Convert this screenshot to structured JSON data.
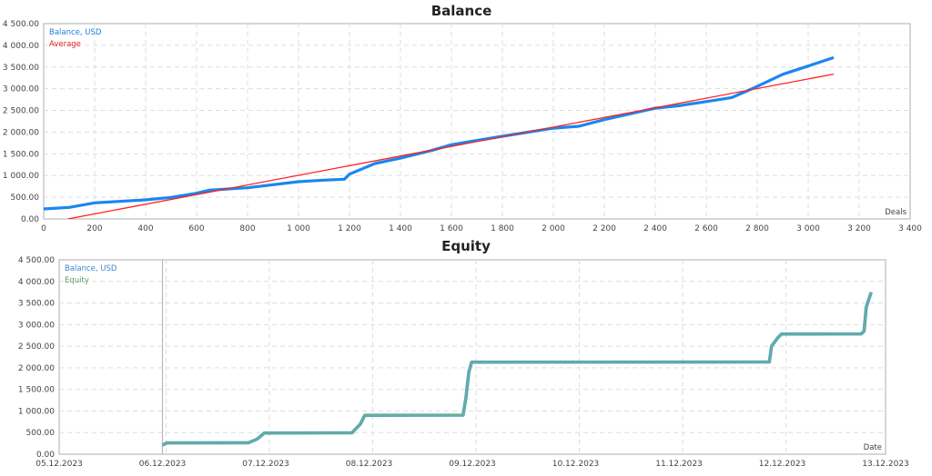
{
  "chart_data": [
    {
      "type": "line",
      "title": "Balance",
      "xlabel": "Deals",
      "ylabel": "",
      "xlim": [
        0,
        3400
      ],
      "ylim": [
        0,
        4500
      ],
      "grid": true,
      "legend_position": "top-left",
      "x_ticks": [
        "0",
        "200",
        "400",
        "600",
        "800",
        "1 000",
        "1 200",
        "1 400",
        "1 600",
        "1 800",
        "2 000",
        "2 200",
        "2 400",
        "2 600",
        "2 800",
        "3 000",
        "3 200",
        "3 400"
      ],
      "y_ticks": [
        "0.00",
        "500.00",
        "1 000.00",
        "1 500.00",
        "2 000.00",
        "2 500.00",
        "3 000.00",
        "3 500.00",
        "4 000.00",
        "4 500.00"
      ],
      "colors": {
        "balance": "#1a86f0",
        "average": "#ff2020"
      },
      "series": [
        {
          "name": "Balance, USD",
          "points": [
            [
              0,
              230
            ],
            [
              100,
              265
            ],
            [
              200,
              370
            ],
            [
              400,
              440
            ],
            [
              500,
              495
            ],
            [
              600,
              592
            ],
            [
              650,
              663
            ],
            [
              800,
              718
            ],
            [
              1000,
              858
            ],
            [
              1100,
              893
            ],
            [
              1180,
              914
            ],
            [
              1200,
              1032
            ],
            [
              1300,
              1276
            ],
            [
              1400,
              1400
            ],
            [
              1520,
              1575
            ],
            [
              1600,
              1709
            ],
            [
              1800,
              1904
            ],
            [
              2000,
              2090
            ],
            [
              2100,
              2134
            ],
            [
              2200,
              2287
            ],
            [
              2400,
              2552
            ],
            [
              2500,
              2615
            ],
            [
              2600,
              2705
            ],
            [
              2700,
              2797
            ],
            [
              2760,
              2950
            ],
            [
              2800,
              3054
            ],
            [
              2900,
              3333
            ],
            [
              3000,
              3522
            ],
            [
              3100,
              3717
            ]
          ]
        },
        {
          "name": "Average",
          "points": [
            [
              95,
              0
            ],
            [
              3100,
              3336
            ]
          ]
        }
      ]
    },
    {
      "type": "line",
      "title": "Equity",
      "xlabel": "Date",
      "ylabel": "",
      "xlim": [
        "2023-12-05",
        "2023-12-13"
      ],
      "ylim": [
        0,
        4500
      ],
      "grid": true,
      "legend_position": "top-left",
      "x_ticks": [
        "05.12.2023",
        "06.12.2023",
        "07.12.2023",
        "08.12.2023",
        "09.12.2023",
        "10.12.2023",
        "11.12.2023",
        "12.12.2023",
        "13.12.2023"
      ],
      "y_ticks": [
        "0.00",
        "500.00",
        "1 000.00",
        "1 500.00",
        "2 000.00",
        "2 500.00",
        "3 000.00",
        "3 500.00",
        "4 000.00",
        "4 500.00"
      ],
      "colors": {
        "balance": "#4a9fd8",
        "equity": "#6cb08a"
      },
      "series": [
        {
          "name": "Balance, USD",
          "points": [
            [
              "2023-12-06 00:00",
              210
            ],
            [
              "2023-12-06 01:00",
              260
            ],
            [
              "2023-12-06 20:00",
              265
            ],
            [
              "2023-12-06 22:00",
              350
            ],
            [
              "2023-12-06 23:40",
              490
            ],
            [
              "2023-12-07 20:00",
              495
            ],
            [
              "2023-12-07 22:00",
              700
            ],
            [
              "2023-12-07 23:00",
              900
            ],
            [
              "2023-12-08 21:50",
              905
            ],
            [
              "2023-12-08 22:30",
              1300
            ],
            [
              "2023-12-08 23:10",
              1900
            ],
            [
              "2023-12-08 23:50",
              2130
            ],
            [
              "2023-12-11 21:00",
              2135
            ],
            [
              "2023-12-11 21:30",
              2500
            ],
            [
              "2023-12-11 23:00",
              2700
            ],
            [
              "2023-12-11 23:50",
              2782
            ],
            [
              "2023-12-12 18:20",
              2785
            ],
            [
              "2023-12-12 19:00",
              2850
            ],
            [
              "2023-12-12 19:30",
              3400
            ],
            [
              "2023-12-12 20:40",
              3750
            ]
          ]
        },
        {
          "name": "Equity",
          "points": [
            [
              "2023-12-06 00:00",
              210
            ],
            [
              "2023-12-06 01:00",
              260
            ],
            [
              "2023-12-06 20:00",
              265
            ],
            [
              "2023-12-06 22:00",
              350
            ],
            [
              "2023-12-06 23:40",
              490
            ],
            [
              "2023-12-07 20:00",
              495
            ],
            [
              "2023-12-07 22:00",
              700
            ],
            [
              "2023-12-07 23:00",
              900
            ],
            [
              "2023-12-08 21:50",
              905
            ],
            [
              "2023-12-08 22:30",
              1300
            ],
            [
              "2023-12-08 23:10",
              1900
            ],
            [
              "2023-12-08 23:50",
              2130
            ],
            [
              "2023-12-11 21:00",
              2135
            ],
            [
              "2023-12-11 21:30",
              2500
            ],
            [
              "2023-12-11 23:00",
              2700
            ],
            [
              "2023-12-11 23:50",
              2782
            ],
            [
              "2023-12-12 18:20",
              2785
            ],
            [
              "2023-12-12 19:00",
              2850
            ],
            [
              "2023-12-12 19:30",
              3400
            ],
            [
              "2023-12-12 20:40",
              3750
            ]
          ]
        }
      ]
    }
  ]
}
